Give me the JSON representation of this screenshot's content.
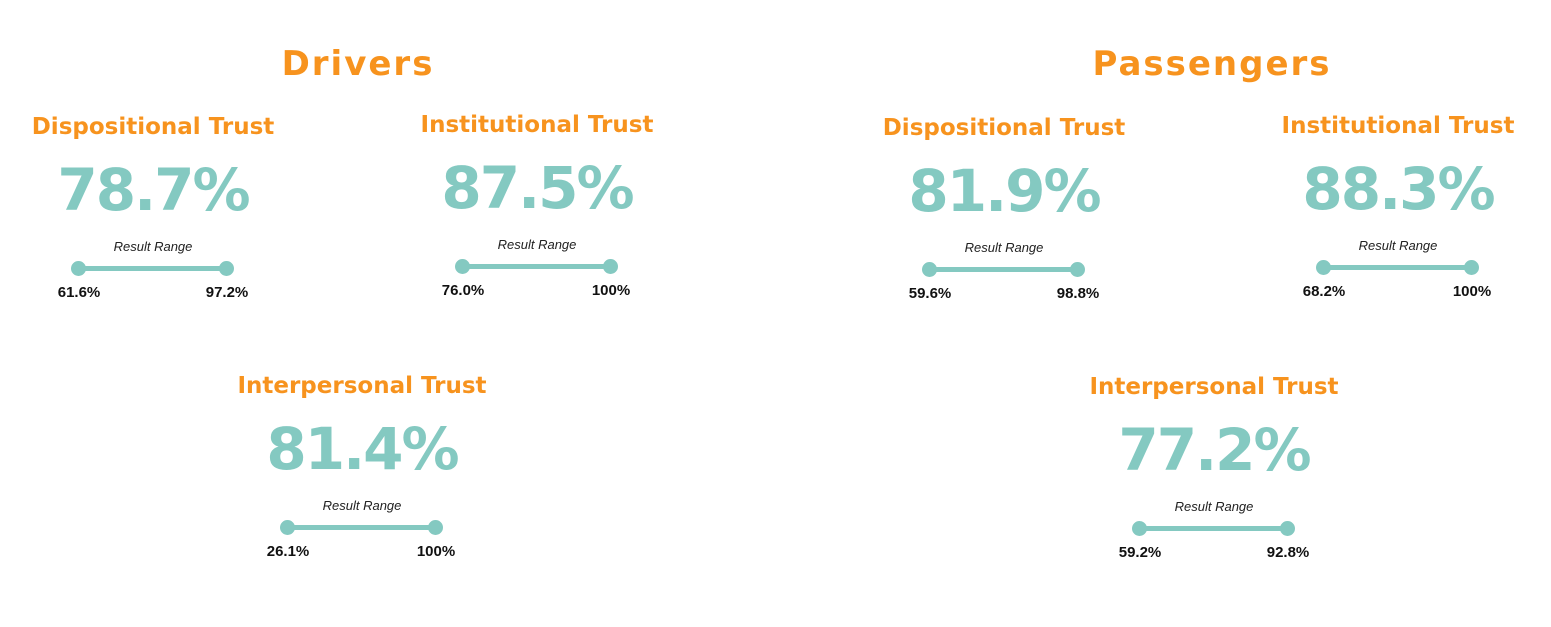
{
  "drivers": {
    "title": "Drivers",
    "dispositional": {
      "label": "Dispositional Trust",
      "value": "78.7%",
      "range_caption": "Result Range",
      "min": "61.6%",
      "max": "97.2%"
    },
    "institutional": {
      "label": "Institutional Trust",
      "value": "87.5%",
      "range_caption": "Result Range",
      "min": "76.0%",
      "max": "100%"
    },
    "interpersonal": {
      "label": "Interpersonal Trust",
      "value": "81.4%",
      "range_caption": "Result Range",
      "min": "26.1%",
      "max": "100%"
    }
  },
  "passengers": {
    "title": "Passengers",
    "dispositional": {
      "label": "Dispositional Trust",
      "value": "81.9%",
      "range_caption": "Result Range",
      "min": "59.6%",
      "max": "98.8%"
    },
    "institutional": {
      "label": "Institutional Trust",
      "value": "88.3%",
      "range_caption": "Result Range",
      "min": "68.2%",
      "max": "100%"
    },
    "interpersonal": {
      "label": "Interpersonal Trust",
      "value": "77.2%",
      "range_caption": "Result Range",
      "min": "59.2%",
      "max": "92.8%"
    }
  },
  "colors": {
    "accent_orange": "#F7931E",
    "teal": "#84C9C1",
    "text_dark": "#111111"
  }
}
